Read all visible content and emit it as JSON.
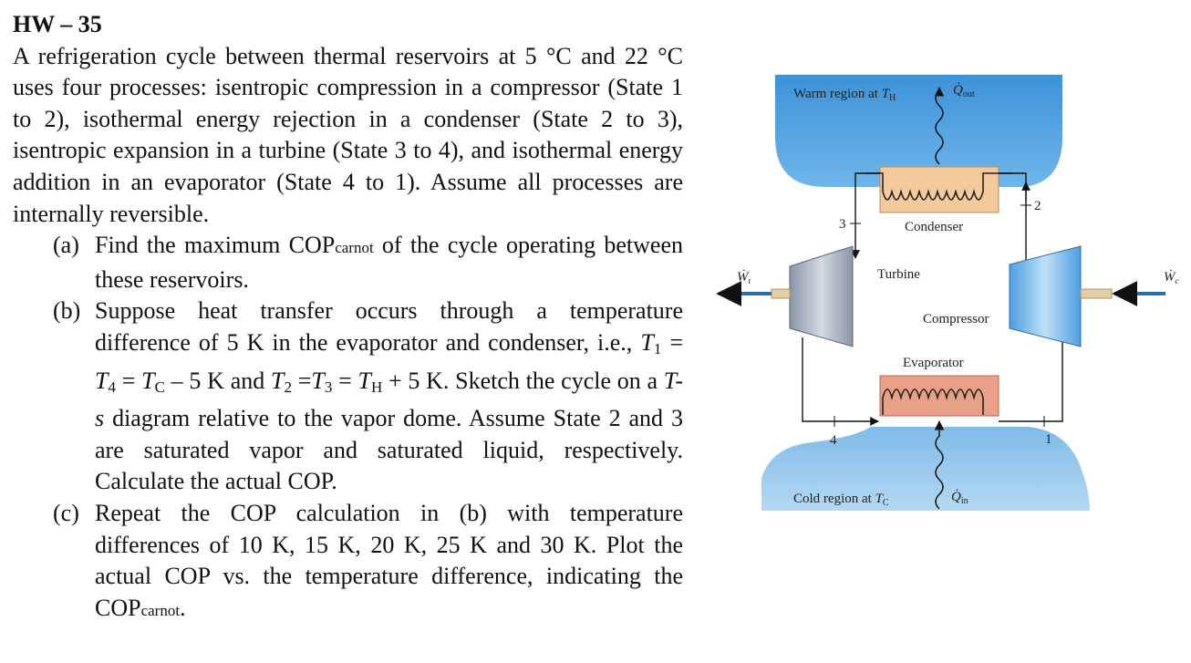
{
  "header": {
    "title": "HW – 35"
  },
  "problem": {
    "intro": "A refrigeration cycle between thermal reservoirs at 5 °C and 22 °C uses four processes: isentropic compression in a compressor (State 1 to 2), isothermal energy rejection in a condenser (State 2 to 3), isentropic expansion in a turbine (State 3 to 4), and isothermal energy addition in an evaporator (State 4 to 1). Assume all processes are internally reversible.",
    "parts": [
      {
        "label": "(a)",
        "runs": [
          "Find the maximum COP",
          "carnot",
          " of the cycle operating between these reservoirs."
        ]
      },
      {
        "label": "(b)",
        "runs": [
          "Suppose heat transfer occurs through a temperature difference of 5 K in the evaporator and condenser, i.e., ",
          "T",
          "1",
          " = ",
          "T",
          "4",
          " = ",
          "T",
          "C",
          " – 5 K and ",
          "T",
          "2",
          " =",
          "T",
          "3",
          " = ",
          "T",
          "H",
          " + 5 K. Sketch the cycle on a ",
          "T-s",
          " diagram relative to the vapor dome. Assume State 2 and 3 are saturated vapor and saturated liquid, respectively.  Calculate the actual COP."
        ]
      },
      {
        "label": "(c)",
        "runs": [
          "Repeat the COP calculation in (b) with temperature differences of 10 K, 15 K, 20 K, 25 K and 30 K.  Plot the actual COP vs. the temperature difference, indicating the COP",
          "carnot",
          "."
        ]
      }
    ]
  },
  "diagram": {
    "warm_region": [
      "Warm region at ",
      "T",
      "H"
    ],
    "q_out": [
      "Q̇",
      "out"
    ],
    "cold_region": [
      "Cold region at ",
      "T",
      "C"
    ],
    "q_in": [
      "Q̇",
      "in"
    ],
    "condenser": "Condenser",
    "turbine": "Turbine",
    "compressor": "Compressor",
    "evaporator": "Evaporator",
    "w_t": [
      "Ẇ",
      "t"
    ],
    "w_c": [
      "Ẇ",
      "c"
    ],
    "states": [
      "1",
      "2",
      "3",
      "4"
    ]
  }
}
